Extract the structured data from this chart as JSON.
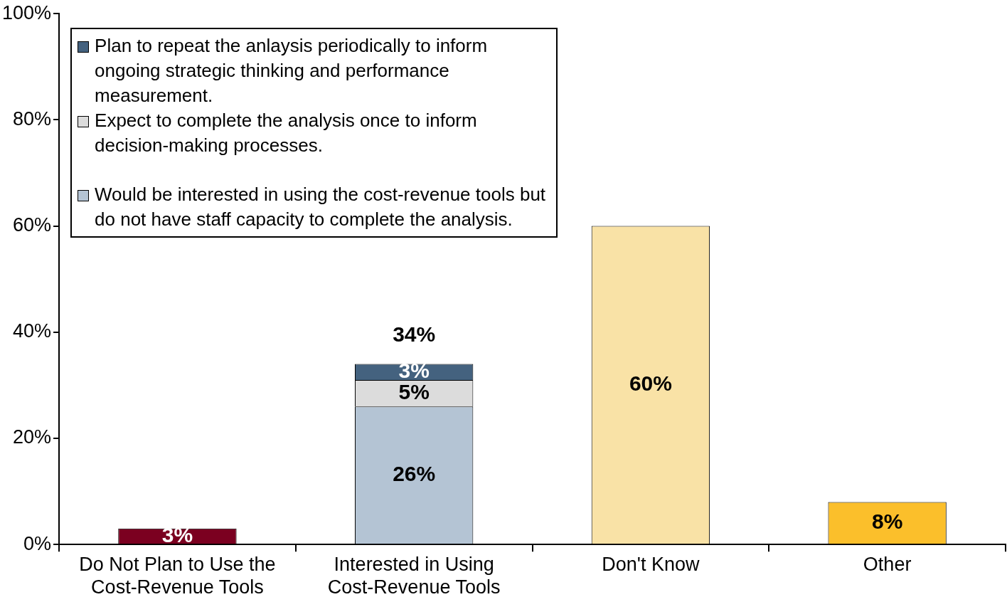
{
  "chart_data": {
    "type": "bar",
    "stacked": true,
    "categories": [
      "Do Not Plan to Use the Cost-Revenue Tools",
      "Interested in Using Cost-Revenue Tools",
      "Don't Know",
      "Other"
    ],
    "series": [
      {
        "colors": [
          "#7b0020",
          "#b4c4d4",
          "#f9e2a6",
          "#fbbf2b"
        ],
        "values": [
          3,
          null,
          60,
          8
        ],
        "value_labels": [
          "3%",
          null,
          "60%",
          "8%"
        ]
      },
      {
        "name": "Would be interested in using the cost-revenue tools but do not have staff capacity to complete the analysis.",
        "color": "#b4c4d4",
        "values": [
          null,
          26,
          null,
          null
        ],
        "value_labels": [
          null,
          "26%",
          null,
          null
        ]
      },
      {
        "name": "Expect to complete the analysis once to inform decision-making processes.",
        "color": "#dcdcdc",
        "values": [
          null,
          5,
          null,
          null
        ],
        "value_labels": [
          null,
          "5%",
          null,
          null
        ]
      },
      {
        "name": "Plan to repeat the anlaysis periodically to inform ongoing strategic thinking and performance measurement.",
        "color": "#44627f",
        "values": [
          null,
          3,
          null,
          null
        ],
        "value_labels": [
          null,
          "3%",
          null,
          null
        ]
      }
    ],
    "totals": [
      null,
      "34%",
      null,
      null
    ],
    "ylim": [
      0,
      100
    ],
    "yticks": [
      {
        "value": 0,
        "label": "0%"
      },
      {
        "value": 20,
        "label": "20%"
      },
      {
        "value": 40,
        "label": "40%"
      },
      {
        "value": 60,
        "label": "60%"
      },
      {
        "value": 80,
        "label": "80%"
      },
      {
        "value": 100,
        "label": "100%"
      }
    ],
    "grid": false,
    "legend": "top left"
  }
}
